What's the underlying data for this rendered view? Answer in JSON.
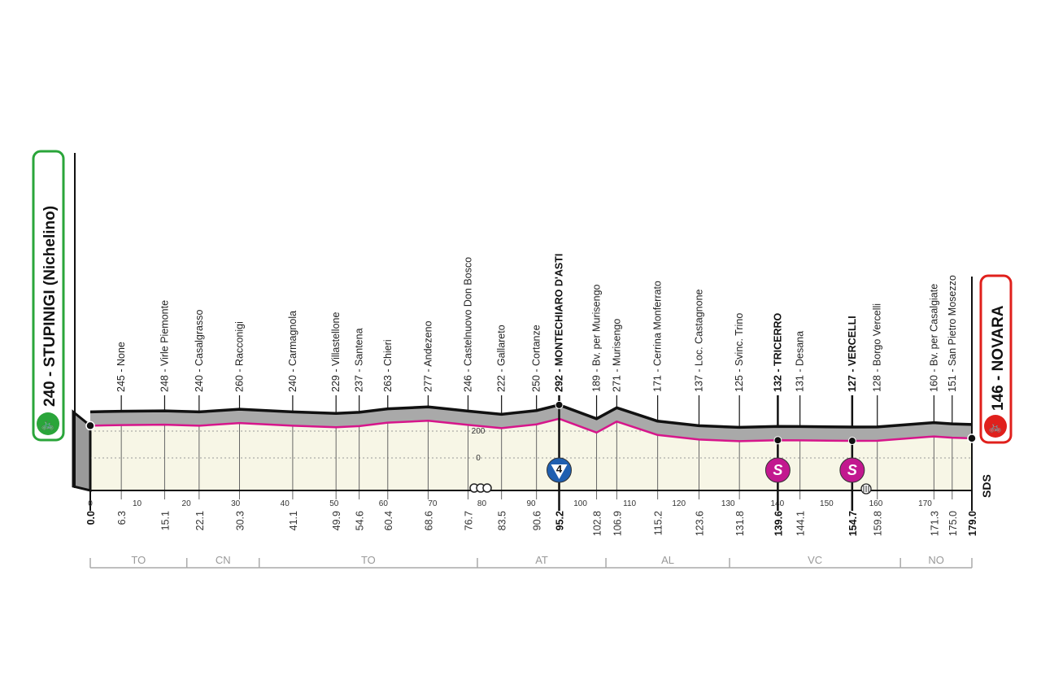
{
  "chart_data": {
    "type": "area",
    "start": {
      "label": "240 - STUPINIGI (Nichelino)",
      "color": "#2aa53a"
    },
    "finish": {
      "label": "146 - NOVARA",
      "color": "#e0201c"
    },
    "waypoints": [
      {
        "km": 0.0,
        "elev": 240,
        "label": "",
        "bold": true
      },
      {
        "km": 6.3,
        "elev": 245,
        "label": "245 - None"
      },
      {
        "km": 15.1,
        "elev": 248,
        "label": "248 - Virle Piemonte"
      },
      {
        "km": 22.1,
        "elev": 240,
        "label": "240 - Casalgrasso"
      },
      {
        "km": 30.3,
        "elev": 260,
        "label": "260 - Racconigi"
      },
      {
        "km": 41.1,
        "elev": 240,
        "label": "240 - Carmagnola"
      },
      {
        "km": 49.9,
        "elev": 229,
        "label": "229 - Villastellone"
      },
      {
        "km": 54.6,
        "elev": 237,
        "label": "237 - Santena"
      },
      {
        "km": 60.4,
        "elev": 263,
        "label": "263 - Chieri"
      },
      {
        "km": 68.6,
        "elev": 277,
        "label": "277 - Andezeno"
      },
      {
        "km": 76.7,
        "elev": 246,
        "label": "246 - Castelnuovo Don Bosco"
      },
      {
        "km": 83.5,
        "elev": 222,
        "label": "222 - Gallareto"
      },
      {
        "km": 90.6,
        "elev": 250,
        "label": "250 - Cortanze"
      },
      {
        "km": 95.2,
        "elev": 292,
        "label": "292 - MONTECHIARO D'ASTI",
        "bold": true
      },
      {
        "km": 102.8,
        "elev": 189,
        "label": "189 - Bv. per Murisengo"
      },
      {
        "km": 106.9,
        "elev": 271,
        "label": "271 - Murisengo"
      },
      {
        "km": 115.2,
        "elev": 171,
        "label": "171 - Cerrina Monferrato"
      },
      {
        "km": 123.6,
        "elev": 137,
        "label": "137 - Loc. Castagnone"
      },
      {
        "km": 131.8,
        "elev": 125,
        "label": "125 - Svinc. Trino"
      },
      {
        "km": 139.6,
        "elev": 132,
        "label": "132 - TRICERRO",
        "bold": true
      },
      {
        "km": 144.1,
        "elev": 131,
        "label": "131 - Desana"
      },
      {
        "km": 154.7,
        "elev": 127,
        "label": "127 - VERCELLI",
        "bold": true
      },
      {
        "km": 159.8,
        "elev": 128,
        "label": "128 - Borgo Vercelli"
      },
      {
        "km": 171.3,
        "elev": 160,
        "label": "160 - Bv. per Casalgiate"
      },
      {
        "km": 175.0,
        "elev": 151,
        "label": "151 - San Pietro Mosezzo"
      },
      {
        "km": 179.0,
        "elev": 146,
        "label": "",
        "bold": true
      }
    ],
    "km_labels": [
      "0.0",
      "6.3",
      "15.1",
      "22.1",
      "30.3",
      "41.1",
      "49.9",
      "54.6",
      "60.4",
      "68.6",
      "76.7",
      "83.5",
      "90.6",
      "95.2",
      "102.8",
      "106.9",
      "115.2",
      "123.6",
      "131.8",
      "139.6",
      "144.1",
      "154.7",
      "159.8",
      "171.3",
      "175.0",
      "179.0"
    ],
    "x_ticks": [
      "0",
      "10",
      "20",
      "30",
      "40",
      "50",
      "60",
      "70",
      "80",
      "90",
      "100",
      "110",
      "120",
      "130",
      "140",
      "150",
      "160",
      "170"
    ],
    "xlim": [
      0,
      179
    ],
    "y_ticks": [
      "200",
      "0"
    ],
    "markers": [
      {
        "type": "kom",
        "km": 95.2,
        "label": "4",
        "color": "#1f5fb0"
      },
      {
        "type": "sprint",
        "km": 139.6,
        "label": "S",
        "color": "#c2188f"
      },
      {
        "type": "sprint",
        "km": 154.7,
        "label": "S",
        "color": "#c2188f"
      }
    ],
    "regions": [
      {
        "name": "TO",
        "from": 0,
        "to": 19.6
      },
      {
        "name": "CN",
        "from": 19.6,
        "to": 34.3
      },
      {
        "name": "TO",
        "from": 34.3,
        "to": 78.6
      },
      {
        "name": "AT",
        "from": 78.6,
        "to": 104.7
      },
      {
        "name": "AL",
        "from": 104.7,
        "to": 129.8
      },
      {
        "name": "VC",
        "from": 129.8,
        "to": 164.5
      },
      {
        "name": "NO",
        "from": 164.5,
        "to": 179
      }
    ],
    "logo_text": "SDS",
    "colors": {
      "profile_line": "#d6168b",
      "ribbon": "#a9a9a9",
      "fill": "#f7f6e6"
    }
  }
}
